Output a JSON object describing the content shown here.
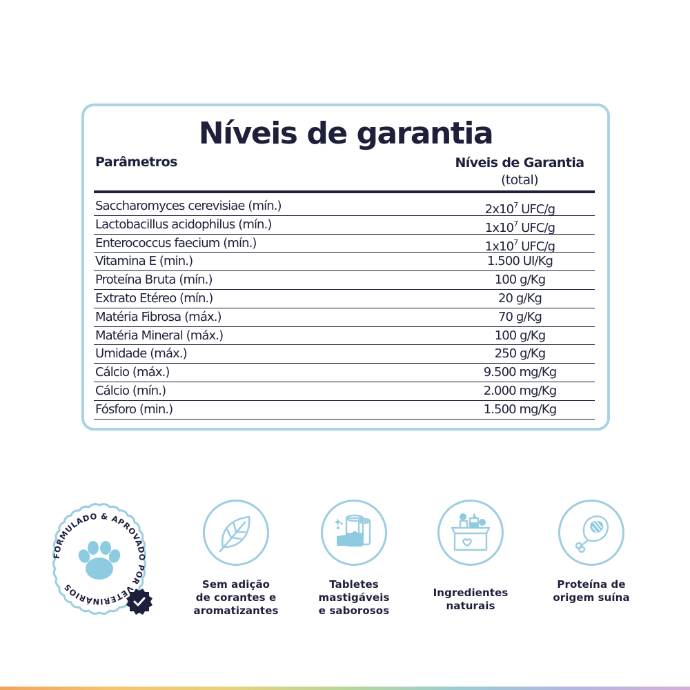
{
  "table": {
    "title": "Níveis de garantia",
    "header_left": "Parâmetros",
    "header_right_bold": "Níveis de Garantia",
    "header_right_sub": "(total)",
    "rows": [
      {
        "param": "Saccharomyces cerevisiae (mín.)",
        "value_pre": "2x10",
        "value_sup": "7",
        "value_post": " UFC/g"
      },
      {
        "param": "Lactobacillus acidophilus (mín.)",
        "value_pre": "1x10",
        "value_sup": "7",
        "value_post": " UFC/g"
      },
      {
        "param": "Enterococcus faecium (mín.)",
        "value_pre": "1x10",
        "value_sup": "7",
        "value_post": " UFC/g"
      },
      {
        "param": "Vitamina E (min.)",
        "value_pre": "1.500 UI/Kg",
        "value_sup": "",
        "value_post": ""
      },
      {
        "param": "Proteína Bruta (mín.)",
        "value_pre": "100 g/Kg",
        "value_sup": "",
        "value_post": ""
      },
      {
        "param": "Extrato Etéreo (mín.)",
        "value_pre": "20 g/Kg",
        "value_sup": "",
        "value_post": ""
      },
      {
        "param": "Matéria Fibrosa (máx.)",
        "value_pre": "70 g/Kg",
        "value_sup": "",
        "value_post": ""
      },
      {
        "param": "Matéria Mineral (máx.)",
        "value_pre": "100 g/Kg",
        "value_sup": "",
        "value_post": ""
      },
      {
        "param": "Umidade (máx.)",
        "value_pre": "250 g/Kg",
        "value_sup": "",
        "value_post": ""
      },
      {
        "param": "Cálcio (máx.)",
        "value_pre": "9.500 mg/Kg",
        "value_sup": "",
        "value_post": ""
      },
      {
        "param": "Cálcio (mín.)",
        "value_pre": "2.000 mg/Kg",
        "value_sup": "",
        "value_post": ""
      },
      {
        "param": "Fósforo (min.)",
        "value_pre": "1.500 mg/Kg",
        "value_sup": "",
        "value_post": ""
      }
    ]
  },
  "seal": {
    "ring_text": "FORMULADO & APROVADO POR VETERINÁRIOS",
    "icon": "paw-icon",
    "badge_icon": "check-badge-icon"
  },
  "features": [
    {
      "icon": "leaf-icon",
      "line1": "Sem adição",
      "line2": "de corantes e",
      "line3": "aromatizantes"
    },
    {
      "icon": "tablets-icon",
      "line1": "Tabletes",
      "line2": "mastigáveis",
      "line3": "e saborosos"
    },
    {
      "icon": "ingredients-box-icon",
      "line1": "Ingredientes",
      "line2": "naturais",
      "line3": ""
    },
    {
      "icon": "ham-icon",
      "line1": "Proteína de",
      "line2": "origem suína",
      "line3": ""
    }
  ],
  "colors": {
    "text": "#1d1f3b",
    "accent_blue": "#a9d3e3",
    "icon_fill": "#8ccbe0"
  }
}
